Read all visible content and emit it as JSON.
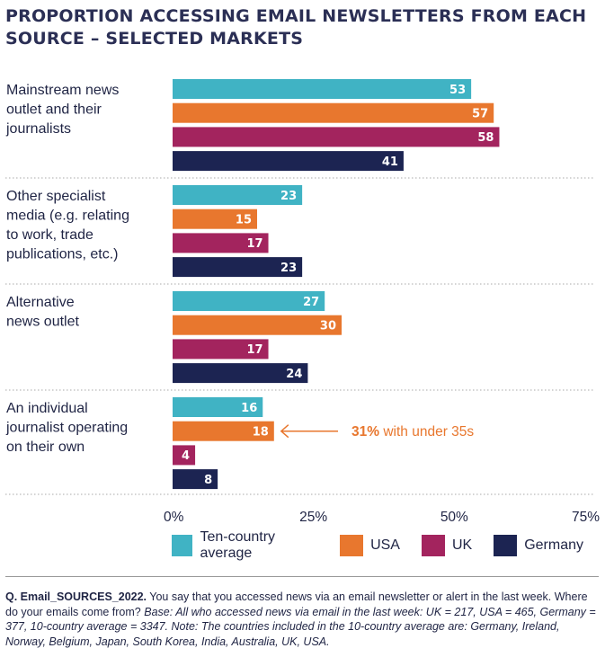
{
  "chart_data": {
    "type": "bar",
    "orientation": "horizontal",
    "title": "PROPORTION ACCESSING EMAIL NEWSLETTERS FROM EACH SOURCE – SELECTED MARKETS",
    "categories": [
      [
        "Mainstream news",
        "outlet and their",
        "journalists"
      ],
      [
        "Other specialist",
        "media (e.g. relating",
        "to work, trade",
        "publications, etc.)"
      ],
      [
        "Alternative",
        "news outlet"
      ],
      [
        "An individual",
        "journalist operating",
        "on their own"
      ]
    ],
    "series": [
      {
        "name": "Ten-country average",
        "color": "#40b3c4",
        "values": [
          53,
          23,
          27,
          16
        ]
      },
      {
        "name": "USA",
        "color": "#e8772e",
        "values": [
          57,
          15,
          30,
          18
        ]
      },
      {
        "name": "UK",
        "color": "#a3245e",
        "values": [
          58,
          17,
          17,
          4
        ]
      },
      {
        "name": "Germany",
        "color": "#1c2452",
        "values": [
          41,
          23,
          24,
          8
        ]
      }
    ],
    "xlim": [
      0,
      75
    ],
    "xticks": [
      "0%",
      "25%",
      "50%",
      "75%"
    ],
    "xtick_values": [
      0,
      25,
      50,
      75
    ],
    "legend_position": "bottom",
    "annotation": {
      "bold": "31%",
      "text": " with under 35s",
      "category_index": 3,
      "series_index": 1
    }
  },
  "note": {
    "question_id": "Q. Email_SOURCES_2022.",
    "question": " You say that you accessed news via an email newsletter or alert in the last week. Where do your emails come from? ",
    "base": "Base: All who accessed news via email in the last week: UK = 217, USA = 465, Germany = 377, 10-country average = 3347. Note: The countries included in the 10-country average are: Germany, Ireland, Norway, Belgium, Japan, South Korea, India, Australia, UK, USA."
  }
}
